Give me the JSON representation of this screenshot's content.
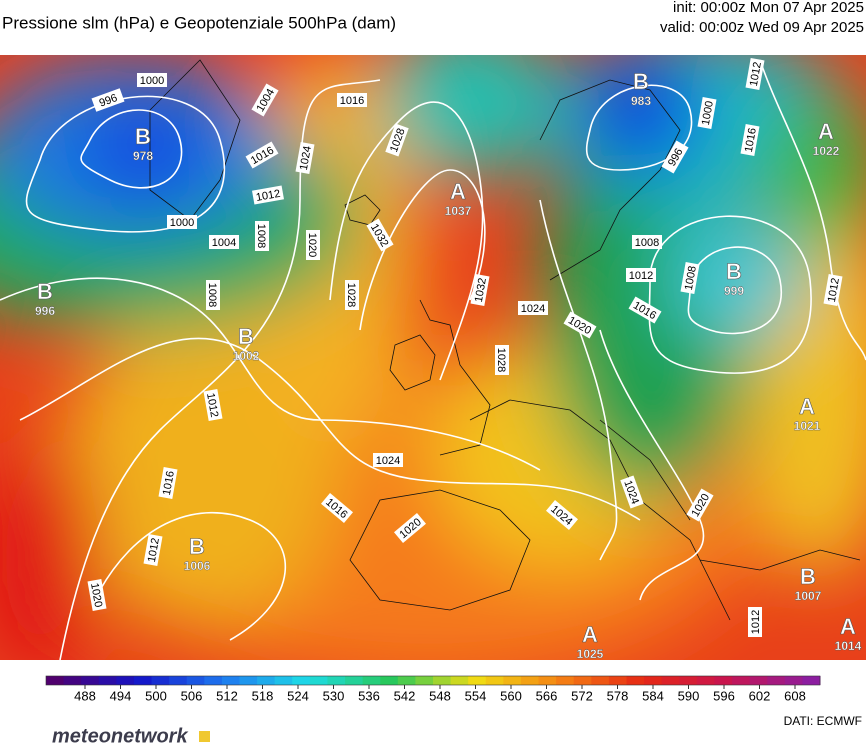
{
  "header": {
    "title": "Pressione slm (hPa) e Geopotenziale 500hPa (dam)",
    "init": "init: 00:00z Mon 07 Apr 2025",
    "valid": "valid: 00:00z Wed 09 Apr 2025"
  },
  "map": {
    "centers": [
      {
        "letter": "B",
        "value": "978"
      },
      {
        "letter": "B",
        "value": "996"
      },
      {
        "letter": "B",
        "value": "1002"
      },
      {
        "letter": "A",
        "value": "1037"
      },
      {
        "letter": "B",
        "value": "983"
      },
      {
        "letter": "A",
        "value": "1022"
      },
      {
        "letter": "B",
        "value": "999"
      },
      {
        "letter": "A",
        "value": "1021"
      },
      {
        "letter": "B",
        "value": "1006"
      },
      {
        "letter": "B",
        "value": "1007"
      },
      {
        "letter": "A",
        "value": "1025"
      },
      {
        "letter": "A",
        "value": "1014"
      }
    ],
    "isobar_labels": [
      "996",
      "1000",
      "1000",
      "1004",
      "1008",
      "1008",
      "1012",
      "1016",
      "1004",
      "1024",
      "1020",
      "1028",
      "1032",
      "1016",
      "1028",
      "1032",
      "1028",
      "1024",
      "1020",
      "1024",
      "1016",
      "1020",
      "1024",
      "1024",
      "1020",
      "1012",
      "1016",
      "1012",
      "1020",
      "996",
      "1000",
      "1012",
      "1016",
      "1008",
      "1012",
      "1016",
      "1008",
      "1012",
      "1012"
    ]
  },
  "colorbar": {
    "ticks": [
      488,
      494,
      500,
      506,
      512,
      518,
      524,
      530,
      536,
      542,
      548,
      554,
      560,
      566,
      572,
      578,
      584,
      590,
      596,
      602,
      608
    ]
  },
  "footer": {
    "logo": "meteonetwork",
    "source": "DATI:  ECMWF"
  }
}
